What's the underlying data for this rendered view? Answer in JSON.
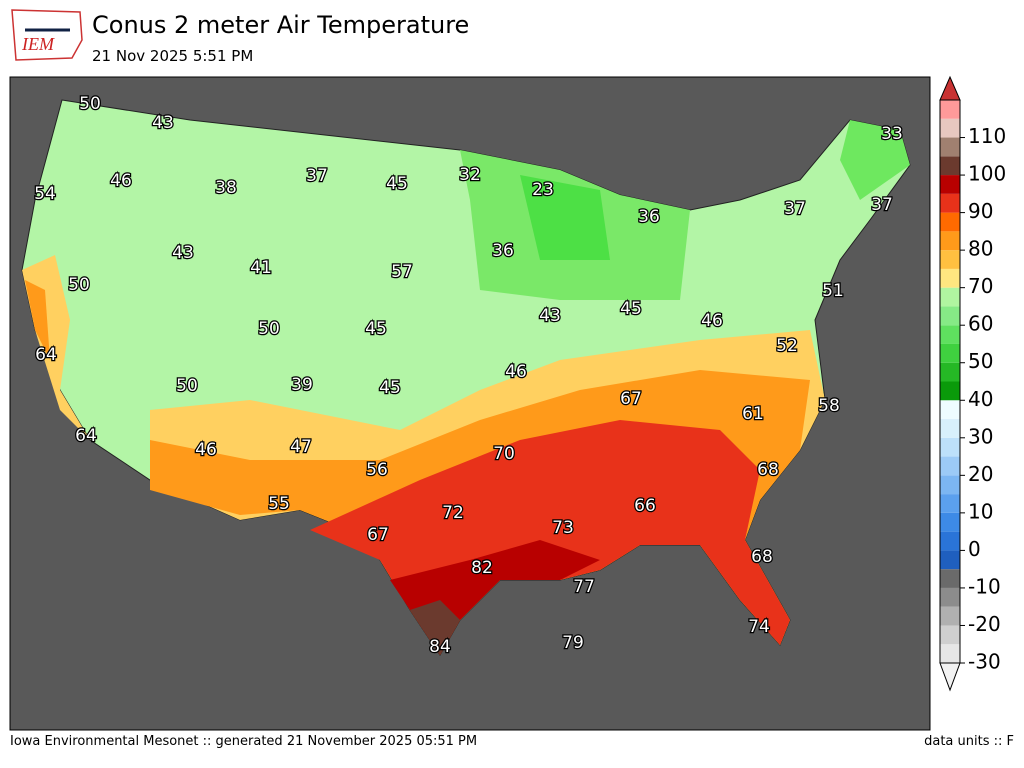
{
  "header": {
    "logo_text": "IEM",
    "title": "Conus 2 meter Air Temperature",
    "subtitle": "21 Nov 2025 5:51 PM"
  },
  "map": {
    "labels": [
      50,
      43,
      54,
      46,
      38,
      37,
      45,
      32,
      23,
      36,
      37,
      37,
      33,
      43,
      41,
      57,
      36,
      50,
      51,
      43,
      45,
      46,
      50,
      45,
      52,
      64,
      39,
      45,
      46,
      50,
      67,
      61,
      58,
      64,
      46,
      47,
      56,
      70,
      68,
      55,
      72,
      66,
      73,
      67,
      68,
      82,
      77,
      74,
      79,
      84
    ]
  },
  "colorbar": {
    "ticks": [
      -30,
      -20,
      -10,
      0,
      10,
      20,
      30,
      40,
      50,
      60,
      70,
      80,
      90,
      100,
      110
    ]
  },
  "footer": {
    "left": "Iowa Environmental Mesonet :: generated 21 November 2025 05:51 PM",
    "right": "data units :: F"
  }
}
